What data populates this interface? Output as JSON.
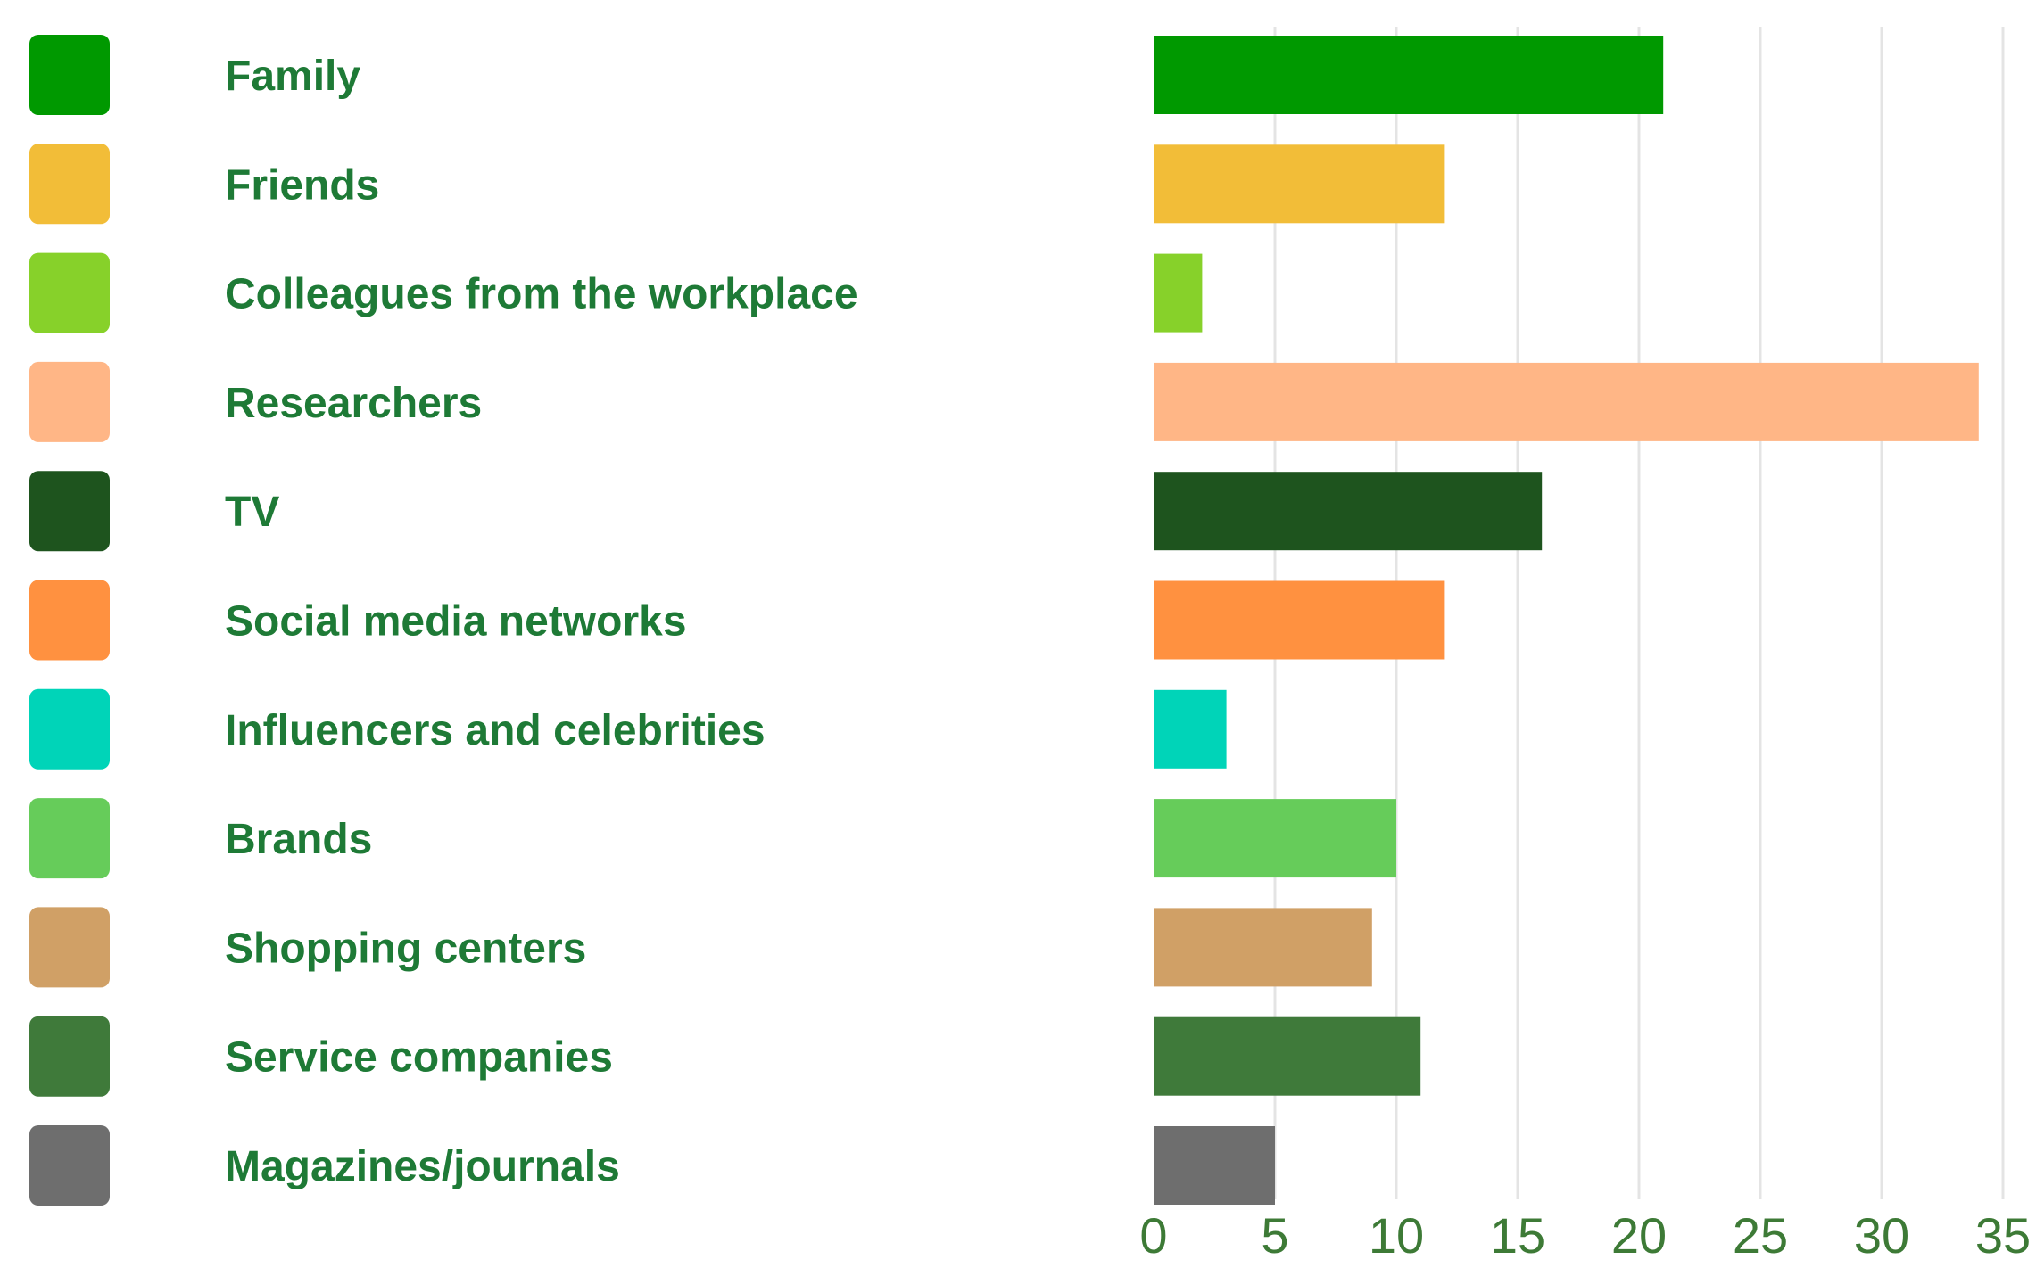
{
  "chart_data": {
    "type": "bar",
    "orientation": "horizontal",
    "categories": [
      "Family",
      "Friends",
      "Colleagues from the workplace",
      "Researchers",
      "TV",
      "Social media networks",
      "Influencers and celebrities",
      "Brands",
      "Shopping centers",
      "Service companies",
      "Magazines/journals"
    ],
    "values": [
      21,
      12,
      2,
      34,
      16,
      12,
      3,
      10,
      9,
      11,
      5
    ],
    "colors": [
      "#009900",
      "#f2bd38",
      "#87d12a",
      "#ffb686",
      "#1e541e",
      "#ff9140",
      "#00d4b8",
      "#66cc5a",
      "#d0a066",
      "#3f7a3a",
      "#6e6e6e"
    ],
    "title": "",
    "xlabel": "",
    "ylabel": "",
    "xlim": [
      0,
      35
    ],
    "xticks": [
      0,
      5,
      10,
      15,
      20,
      25,
      30,
      35
    ],
    "grid": "vertical",
    "legend": "left"
  }
}
